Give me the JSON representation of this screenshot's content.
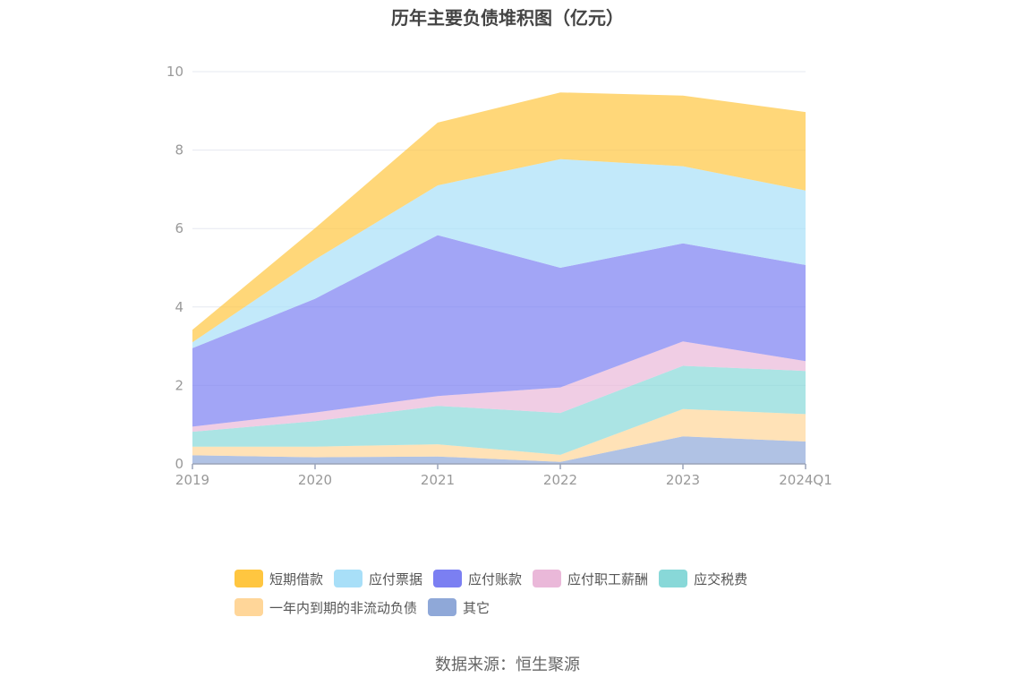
{
  "chart_data": {
    "type": "area",
    "stacked": true,
    "title": "历年主要负债堆积图（亿元）",
    "categories": [
      "2019",
      "2020",
      "2021",
      "2022",
      "2023",
      "2024Q1"
    ],
    "ylim": [
      0,
      10
    ],
    "yticks": [
      "0",
      "2",
      "4",
      "6",
      "8",
      "10"
    ],
    "grid": true,
    "legend_position": "bottom",
    "series": [
      {
        "name": "其它",
        "color": "#8fa8d8",
        "values": [
          0.22,
          0.17,
          0.19,
          0.05,
          0.7,
          0.57
        ]
      },
      {
        "name": "一年内到期的非流动负债",
        "color": "#ffd699",
        "values": [
          0.22,
          0.27,
          0.31,
          0.18,
          0.7,
          0.7
        ]
      },
      {
        "name": "应交税费",
        "color": "#88d8d8",
        "values": [
          0.38,
          0.65,
          0.98,
          1.07,
          1.1,
          1.1
        ]
      },
      {
        "name": "应付职工薪酬",
        "color": "#eab8d9",
        "values": [
          0.13,
          0.22,
          0.25,
          0.65,
          0.62,
          0.25
        ]
      },
      {
        "name": "应付账款",
        "color": "#7b7ff2",
        "values": [
          2.0,
          2.9,
          4.1,
          3.05,
          2.5,
          2.45
        ]
      },
      {
        "name": "应付票据",
        "color": "#a8dff8",
        "values": [
          0.15,
          1.0,
          1.27,
          2.77,
          1.97,
          1.9
        ]
      },
      {
        "name": "短期借款",
        "color": "#ffc640",
        "values": [
          0.32,
          0.8,
          1.6,
          1.7,
          1.8,
          2.0
        ]
      }
    ]
  },
  "legend": {
    "row1": [
      "短期借款",
      "应付票据",
      "应付账款",
      "应付职工薪酬",
      "应交税费"
    ],
    "row2": [
      "一年内到期的非流动负债",
      "其它"
    ]
  },
  "source": "数据来源：恒生聚源"
}
